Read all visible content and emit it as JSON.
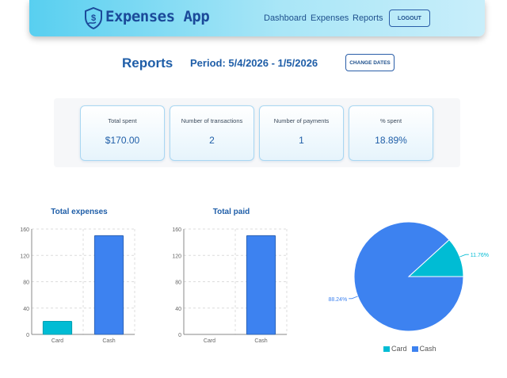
{
  "app": {
    "title": "Expenses App"
  },
  "nav": {
    "links": [
      "Dashboard",
      "Expenses",
      "Reports"
    ],
    "logout_label": "LOGOUT"
  },
  "header": {
    "title": "Reports",
    "period": "Period: 5/4/2026 - 1/5/2026",
    "change_dates_label": "CHANGE DATES"
  },
  "stats": [
    {
      "label": "Total spent",
      "value": "$170.00"
    },
    {
      "label": "Number of transactions",
      "value": "2"
    },
    {
      "label": "Number of payments",
      "value": "1"
    },
    {
      "label": "% spent",
      "value": "18.89%"
    }
  ],
  "colors": {
    "card": "#00bcd4",
    "cash": "#3d82f0",
    "accent": "#1f5ea8"
  },
  "chart_data": [
    {
      "type": "bar",
      "title": "Total expenses",
      "categories": [
        "Card",
        "Cash"
      ],
      "values": [
        20,
        150
      ],
      "ylim": [
        0,
        160
      ],
      "yticks": [
        0,
        40,
        80,
        120,
        160
      ],
      "grid": true
    },
    {
      "type": "bar",
      "title": "Total paid",
      "categories": [
        "Card",
        "Cash"
      ],
      "values": [
        0,
        150
      ],
      "ylim": [
        0,
        160
      ],
      "yticks": [
        0,
        40,
        80,
        120,
        160
      ],
      "grid": true
    },
    {
      "type": "pie",
      "categories": [
        "Card",
        "Cash"
      ],
      "values": [
        11.76,
        88.24
      ],
      "labels": [
        "11.76%",
        "88.24%"
      ],
      "legend": "bottom"
    }
  ]
}
